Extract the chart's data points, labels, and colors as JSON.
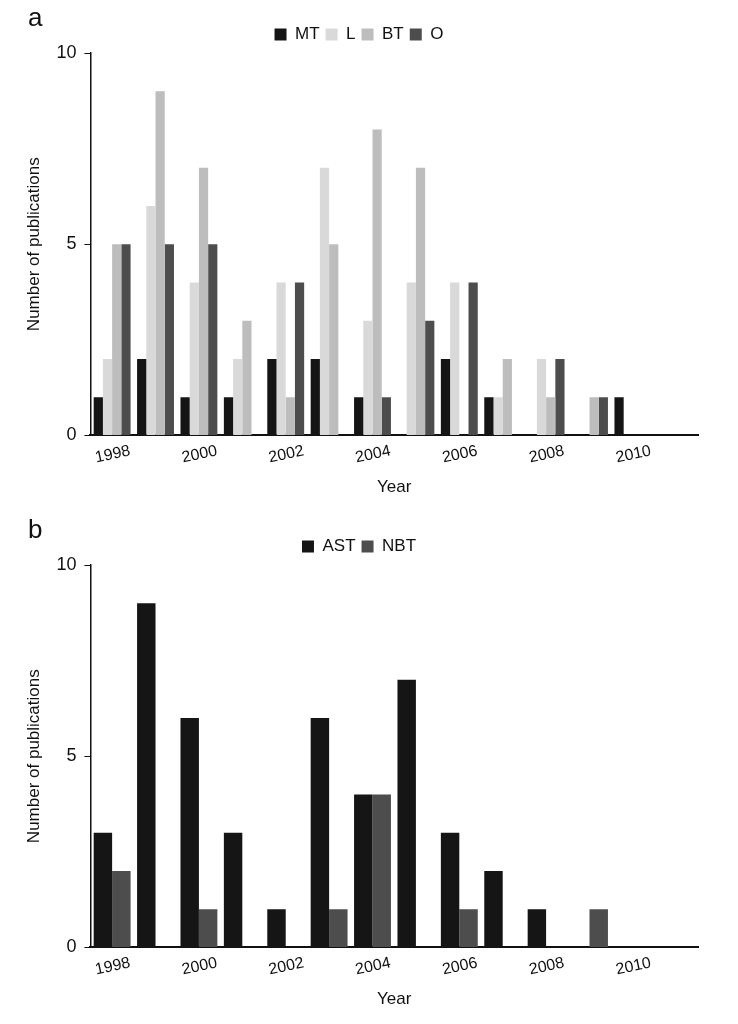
{
  "chart_data": [
    {
      "type": "bar",
      "annotations": [
        "a"
      ],
      "xlabel": "Year",
      "ylabel": "Number of publications",
      "categories": [
        "1998",
        null,
        "2000",
        null,
        "2002",
        null,
        "2004",
        null,
        "2006",
        null,
        "2008",
        null,
        "2010",
        null
      ],
      "ylim": [
        0,
        10
      ],
      "yticks": [
        0,
        5,
        10
      ],
      "legend": "top",
      "series": [
        {
          "name": "MT",
          "color": "#151515",
          "values": [
            1,
            2,
            1,
            1,
            2,
            2,
            1,
            null,
            2,
            1,
            null,
            null,
            1,
            null
          ]
        },
        {
          "name": "L",
          "color": "#d9d9d9",
          "values": [
            2,
            6,
            4,
            2,
            4,
            7,
            3,
            4,
            4,
            1,
            2,
            null,
            null,
            null
          ]
        },
        {
          "name": "BT",
          "color": "#bdbdbd",
          "values": [
            5,
            9,
            7,
            3,
            1,
            5,
            8,
            7,
            null,
            2,
            1,
            1,
            null,
            null
          ]
        },
        {
          "name": "O",
          "color": "#4d4d4d",
          "values": [
            5,
            5,
            5,
            null,
            4,
            null,
            1,
            3,
            4,
            null,
            2,
            1,
            null,
            null
          ]
        }
      ]
    },
    {
      "type": "bar",
      "annotations": [
        "b"
      ],
      "xlabel": "Year",
      "ylabel": "Number of publications",
      "categories": [
        "1998",
        null,
        "2000",
        null,
        "2002",
        null,
        "2004",
        null,
        "2006",
        null,
        "2008",
        null,
        "2010",
        null
      ],
      "ylim": [
        0,
        10
      ],
      "yticks": [
        0,
        5,
        10
      ],
      "legend": "top",
      "series": [
        {
          "name": "AST",
          "color": "#151515",
          "values": [
            3,
            9,
            6,
            3,
            1,
            6,
            4,
            7,
            3,
            2,
            1,
            null,
            null,
            null
          ]
        },
        {
          "name": "NBT",
          "color": "#4d4d4d",
          "values": [
            2,
            null,
            1,
            null,
            null,
            1,
            4,
            null,
            1,
            null,
            null,
            1,
            null,
            null
          ]
        }
      ]
    }
  ]
}
